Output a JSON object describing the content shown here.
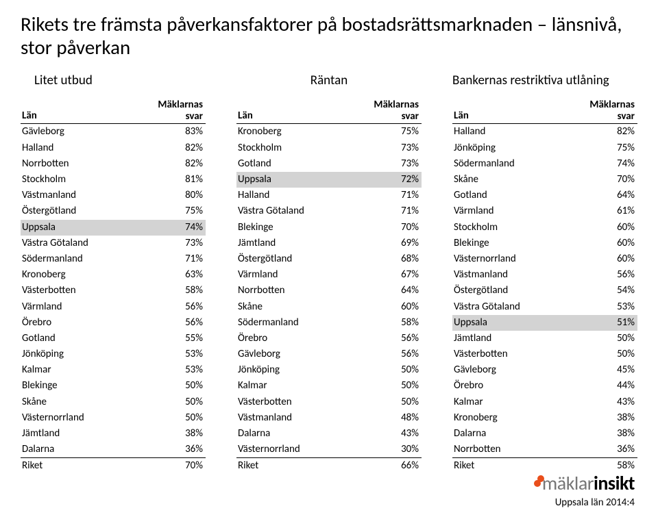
{
  "title": "Rikets tre främsta påverkansfaktorer på bostadsrättsmarknaden – länsnivå, stor påverkan",
  "header_col1": "Län",
  "header_col2_top": "Mäklarnas",
  "header_col2_bot": "svar",
  "columns": [
    {
      "heading": "Litet utbud",
      "rows": [
        {
          "lan": "Gävleborg",
          "pct": "83%",
          "hl": false
        },
        {
          "lan": "Halland",
          "pct": "82%",
          "hl": false
        },
        {
          "lan": "Norrbotten",
          "pct": "82%",
          "hl": false
        },
        {
          "lan": "Stockholm",
          "pct": "81%",
          "hl": false
        },
        {
          "lan": "Västmanland",
          "pct": "80%",
          "hl": false
        },
        {
          "lan": "Östergötland",
          "pct": "75%",
          "hl": false
        },
        {
          "lan": "Uppsala",
          "pct": "74%",
          "hl": true
        },
        {
          "lan": "Västra Götaland",
          "pct": "73%",
          "hl": false
        },
        {
          "lan": "Södermanland",
          "pct": "71%",
          "hl": false
        },
        {
          "lan": "Kronoberg",
          "pct": "63%",
          "hl": false
        },
        {
          "lan": "Västerbotten",
          "pct": "58%",
          "hl": false
        },
        {
          "lan": "Värmland",
          "pct": "56%",
          "hl": false
        },
        {
          "lan": "Örebro",
          "pct": "56%",
          "hl": false
        },
        {
          "lan": "Gotland",
          "pct": "55%",
          "hl": false
        },
        {
          "lan": "Jönköping",
          "pct": "53%",
          "hl": false
        },
        {
          "lan": "Kalmar",
          "pct": "53%",
          "hl": false
        },
        {
          "lan": "Blekinge",
          "pct": "50%",
          "hl": false
        },
        {
          "lan": "Skåne",
          "pct": "50%",
          "hl": false
        },
        {
          "lan": "Västernorrland",
          "pct": "50%",
          "hl": false
        },
        {
          "lan": "Jämtland",
          "pct": "38%",
          "hl": false
        },
        {
          "lan": "Dalarna",
          "pct": "36%",
          "hl": false
        }
      ],
      "total": {
        "lan": "Riket",
        "pct": "70%"
      }
    },
    {
      "heading": "Räntan",
      "rows": [
        {
          "lan": "Kronoberg",
          "pct": "75%",
          "hl": false
        },
        {
          "lan": "Stockholm",
          "pct": "73%",
          "hl": false
        },
        {
          "lan": "Gotland",
          "pct": "73%",
          "hl": false
        },
        {
          "lan": "Uppsala",
          "pct": "72%",
          "hl": true
        },
        {
          "lan": "Halland",
          "pct": "71%",
          "hl": false
        },
        {
          "lan": "Västra Götaland",
          "pct": "71%",
          "hl": false
        },
        {
          "lan": "Blekinge",
          "pct": "70%",
          "hl": false
        },
        {
          "lan": "Jämtland",
          "pct": "69%",
          "hl": false
        },
        {
          "lan": "Östergötland",
          "pct": "68%",
          "hl": false
        },
        {
          "lan": "Värmland",
          "pct": "67%",
          "hl": false
        },
        {
          "lan": "Norrbotten",
          "pct": "64%",
          "hl": false
        },
        {
          "lan": "Skåne",
          "pct": "60%",
          "hl": false
        },
        {
          "lan": "Södermanland",
          "pct": "58%",
          "hl": false
        },
        {
          "lan": "Örebro",
          "pct": "56%",
          "hl": false
        },
        {
          "lan": "Gävleborg",
          "pct": "56%",
          "hl": false
        },
        {
          "lan": "Jönköping",
          "pct": "50%",
          "hl": false
        },
        {
          "lan": "Kalmar",
          "pct": "50%",
          "hl": false
        },
        {
          "lan": "Västerbotten",
          "pct": "50%",
          "hl": false
        },
        {
          "lan": "Västmanland",
          "pct": "48%",
          "hl": false
        },
        {
          "lan": "Dalarna",
          "pct": "43%",
          "hl": false
        },
        {
          "lan": "Västernorrland",
          "pct": "30%",
          "hl": false
        }
      ],
      "total": {
        "lan": "Riket",
        "pct": "66%"
      }
    },
    {
      "heading": "Bankernas restriktiva utlåning",
      "rows": [
        {
          "lan": "Halland",
          "pct": "82%",
          "hl": false
        },
        {
          "lan": "Jönköping",
          "pct": "75%",
          "hl": false
        },
        {
          "lan": "Södermanland",
          "pct": "74%",
          "hl": false
        },
        {
          "lan": "Skåne",
          "pct": "70%",
          "hl": false
        },
        {
          "lan": "Gotland",
          "pct": "64%",
          "hl": false
        },
        {
          "lan": "Värmland",
          "pct": "61%",
          "hl": false
        },
        {
          "lan": "Stockholm",
          "pct": "60%",
          "hl": false
        },
        {
          "lan": "Blekinge",
          "pct": "60%",
          "hl": false
        },
        {
          "lan": "Västernorrland",
          "pct": "60%",
          "hl": false
        },
        {
          "lan": "Västmanland",
          "pct": "56%",
          "hl": false
        },
        {
          "lan": "Östergötland",
          "pct": "54%",
          "hl": false
        },
        {
          "lan": "Västra Götaland",
          "pct": "53%",
          "hl": false
        },
        {
          "lan": "Uppsala",
          "pct": "51%",
          "hl": true
        },
        {
          "lan": "Jämtland",
          "pct": "50%",
          "hl": false
        },
        {
          "lan": "Västerbotten",
          "pct": "50%",
          "hl": false
        },
        {
          "lan": "Gävleborg",
          "pct": "45%",
          "hl": false
        },
        {
          "lan": "Örebro",
          "pct": "44%",
          "hl": false
        },
        {
          "lan": "Kalmar",
          "pct": "43%",
          "hl": false
        },
        {
          "lan": "Kronoberg",
          "pct": "38%",
          "hl": false
        },
        {
          "lan": "Dalarna",
          "pct": "38%",
          "hl": false
        },
        {
          "lan": "Norrbotten",
          "pct": "36%",
          "hl": false
        }
      ],
      "total": {
        "lan": "Riket",
        "pct": "58%"
      }
    }
  ],
  "brand_part1": "mäklar",
  "brand_part2": "insikt",
  "region_label": "Uppsala län 2014:4",
  "highlight_color": "#d3d3d3"
}
